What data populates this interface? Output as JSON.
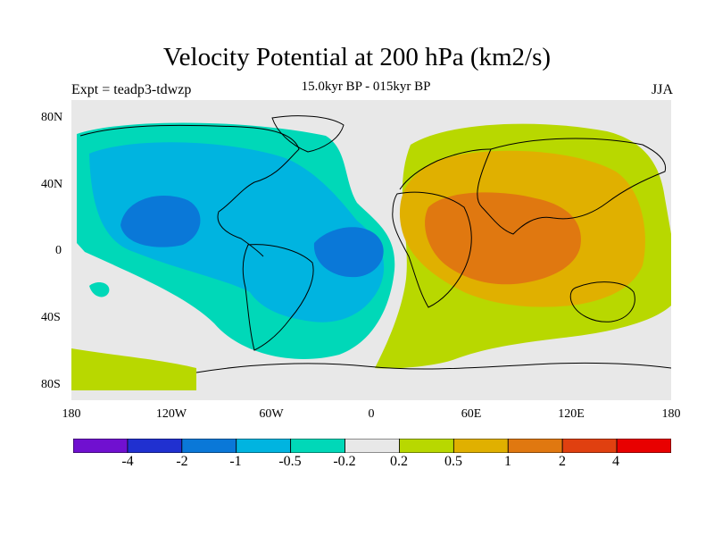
{
  "header": {
    "title": "Velocity Potential at 200 hPa (km2/s)",
    "subtitle": "15.0kyr BP - 015kyr BP",
    "expt": "Expt = teadp3-tdwzp",
    "season": "JJA"
  },
  "axes": {
    "lat_labels": [
      "80N",
      "40N",
      "0",
      "40S",
      "80S"
    ],
    "lon_labels": [
      "180",
      "120W",
      "60W",
      "0",
      "60E",
      "120E",
      "180"
    ]
  },
  "colorbar": {
    "colors": [
      "#7010d0",
      "#2030d0",
      "#0a78d8",
      "#00b4e0",
      "#00d8b8",
      "#e8e8e8",
      "#b8d800",
      "#e0b000",
      "#e07810",
      "#e04010",
      "#e80000"
    ],
    "labels": [
      "-4",
      "-2",
      "-1",
      "-0.5",
      "-0.2",
      "0.2",
      "0.5",
      "1",
      "2",
      "4"
    ]
  },
  "map": {
    "colors": {
      "background": "#e8e8e8",
      "neg_weak": "#00d8b8",
      "neg_mid": "#00b4e0",
      "neg_strong": "#0a78d8",
      "pos_weak": "#b8d800",
      "pos_mid": "#e0b000",
      "pos_strong": "#e07810",
      "coast": "#000000"
    }
  }
}
